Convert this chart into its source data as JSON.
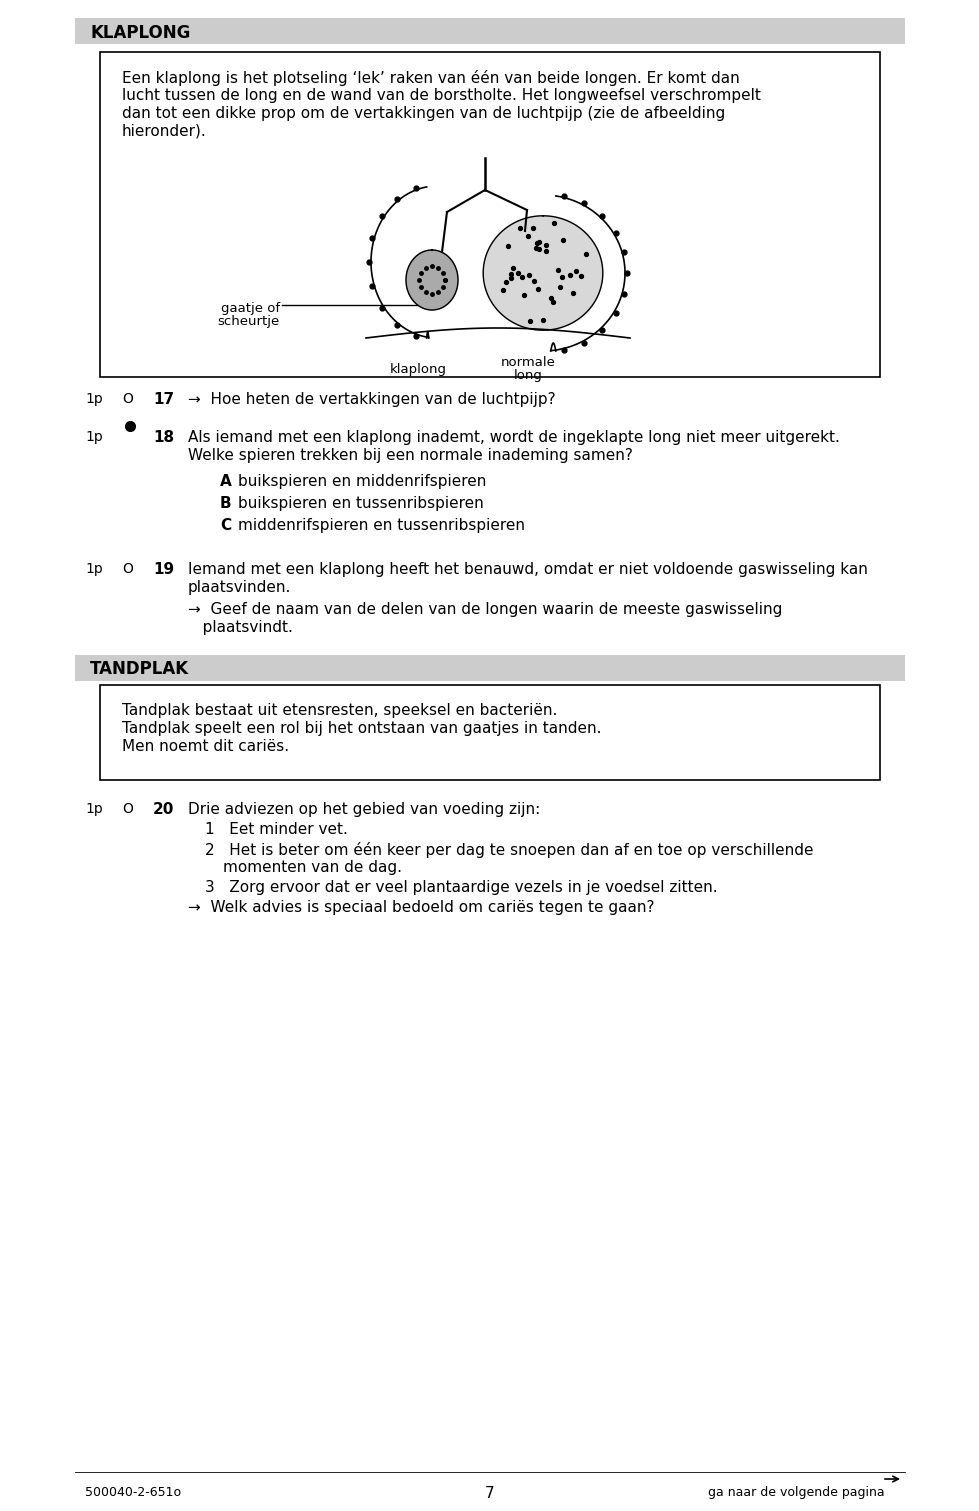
{
  "page_bg": "#ffffff",
  "section1_title": "KLAPLONG",
  "section2_title": "TANDPLAK",
  "box1_lines": [
    "Een klaplong is het plotseling ‘lek’ raken van één van beide longen. Er komt dan",
    "lucht tussen de long en de wand van de borstholte. Het longweefsel verschrompelt",
    "dan tot een dikke prop om de vertakkingen van de luchtpijp (zie de afbeelding",
    "hieronder)."
  ],
  "label_gaatje_line1": "gaatje of",
  "label_gaatje_line2": "scheurtje",
  "label_klaplong": "klaplong",
  "label_normale_long_line1": "normale",
  "label_normale_long_line2": "long",
  "q17_prefix": "1p",
  "q17_symbol": "O",
  "q17_num": "17",
  "q17_text": "→  Hoe heten de vertakkingen van de luchtpijp?",
  "q18_prefix": "1p",
  "q18_num": "18",
  "q18_text1": "Als iemand met een klaplong inademt, wordt de ingeklapte long niet meer uitgerekt.",
  "q18_text2": "Welke spieren trekken bij een normale inademing samen?",
  "q18_A_letter": "A",
  "q18_A_text": "buikspieren en middenrifspieren",
  "q18_B_letter": "B",
  "q18_B_text": "buikspieren en tussenribspieren",
  "q18_C_letter": "C",
  "q18_C_text": "middenrifspieren en tussenribspieren",
  "q19_prefix": "1p",
  "q19_symbol": "O",
  "q19_num": "19",
  "q19_text1": "Iemand met een klaplong heeft het benauwd, omdat er niet voldoende gaswisseling kan",
  "q19_text2": "plaatsvinden.",
  "q19_sub1": "→  Geef de naam van de delen van de longen waarin de meeste gaswisseling",
  "q19_sub2": "   plaatsvindt.",
  "box2_text1": "Tandplak bestaat uit etensresten, speeksel en bacteriën.",
  "box2_text2": "Tandplak speelt een rol bij het ontstaan van gaatjes in tanden.",
  "box2_text3": "Men noemt dit cariës.",
  "q20_prefix": "1p",
  "q20_symbol": "O",
  "q20_num": "20",
  "q20_intro": "Drie adviezen op het gebied van voeding zijn:",
  "q20_1": "1   Eet minder vet.",
  "q20_2a": "2   Het is beter om één keer per dag te snoepen dan af en toe op verschillende",
  "q20_2b": "momenten van de dag.",
  "q20_3": "3   Zorg ervoor dat er veel plantaardige vezels in je voedsel zitten.",
  "q20_sub": "→  Welk advies is speciaal bedoeld om cariës tegen te gaan?",
  "footer_left": "500040-2-651o",
  "footer_center": "7",
  "footer_right": "ga naar de volgende pagina"
}
